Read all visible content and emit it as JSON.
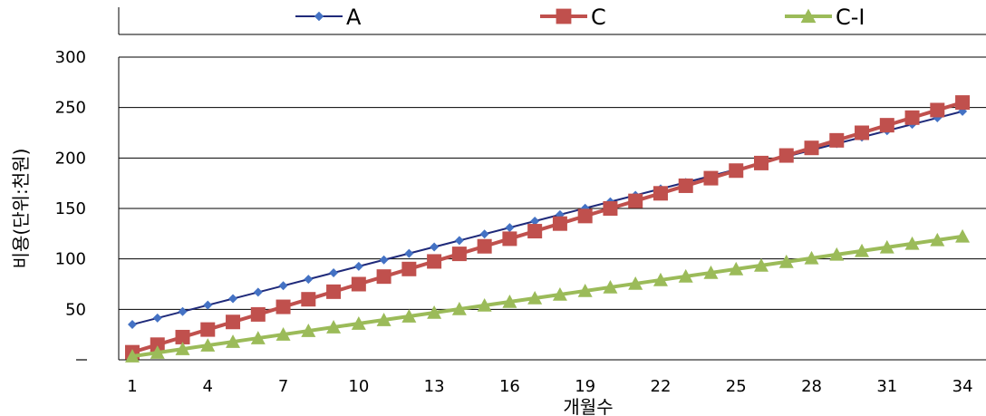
{
  "chart_data": {
    "type": "line",
    "xlabel": "개월수",
    "ylabel": "비용(단위:천원)",
    "ylim": [
      0,
      300
    ],
    "xlim": [
      1,
      34
    ],
    "yticks": [
      "",
      "50",
      "100",
      "150",
      "200",
      "250",
      "300"
    ],
    "xticks": [
      "1",
      "4",
      "7",
      "10",
      "13",
      "16",
      "19",
      "22",
      "25",
      "28",
      "31",
      "34"
    ],
    "grid": true,
    "legend_position": "top",
    "series": [
      {
        "name": "A",
        "color": "#1F2A7A",
        "marker": "diamond",
        "marker_color": "#4472C4",
        "x": [
          1,
          2,
          3,
          4,
          5,
          6,
          7,
          8,
          9,
          10,
          11,
          12,
          13,
          14,
          15,
          16,
          17,
          18,
          19,
          20,
          21,
          22,
          23,
          24,
          25,
          26,
          27,
          28,
          29,
          30,
          31,
          32,
          33,
          34
        ],
        "values": [
          35,
          41.4,
          47.8,
          54.2,
          60.6,
          67,
          73.4,
          79.8,
          86.2,
          92.6,
          99,
          105.4,
          111.8,
          118.2,
          124.6,
          131,
          137.4,
          143.8,
          150.2,
          156.6,
          163,
          169.4,
          175.8,
          182.2,
          188.6,
          195,
          201.4,
          207.8,
          214.2,
          220.6,
          227,
          233.4,
          239.8,
          246.2
        ]
      },
      {
        "name": "C",
        "color": "#C0504D",
        "marker": "square",
        "marker_color": "#C0504D",
        "x": [
          1,
          2,
          3,
          4,
          5,
          6,
          7,
          8,
          9,
          10,
          11,
          12,
          13,
          14,
          15,
          16,
          17,
          18,
          19,
          20,
          21,
          22,
          23,
          24,
          25,
          26,
          27,
          28,
          29,
          30,
          31,
          32,
          33,
          34
        ],
        "values": [
          7.5,
          15,
          22.5,
          30,
          37.5,
          45,
          52.5,
          60,
          67.5,
          75,
          82.5,
          90,
          97.5,
          105,
          112.5,
          120,
          127.5,
          135,
          142.5,
          150,
          157.5,
          165,
          172.5,
          180,
          187.5,
          195,
          202.5,
          210,
          217.5,
          225,
          232.5,
          240,
          247.5,
          255
        ]
      },
      {
        "name": "C-I",
        "color": "#9BBB59",
        "marker": "triangle",
        "marker_color": "#9BBB59",
        "x": [
          1,
          2,
          3,
          4,
          5,
          6,
          7,
          8,
          9,
          10,
          11,
          12,
          13,
          14,
          15,
          16,
          17,
          18,
          19,
          20,
          21,
          22,
          23,
          24,
          25,
          26,
          27,
          28,
          29,
          30,
          31,
          32,
          33,
          34
        ],
        "values": [
          3.5,
          7.1,
          10.7,
          14.3,
          17.9,
          21.5,
          25.1,
          28.7,
          32.3,
          35.9,
          39.5,
          43.1,
          46.7,
          50.3,
          53.9,
          57.5,
          61.1,
          64.7,
          68.3,
          71.9,
          75.5,
          79.1,
          82.7,
          86.3,
          89.9,
          93.5,
          97.1,
          100.7,
          104.3,
          107.9,
          111.5,
          115.1,
          118.7,
          122.3
        ]
      }
    ]
  }
}
